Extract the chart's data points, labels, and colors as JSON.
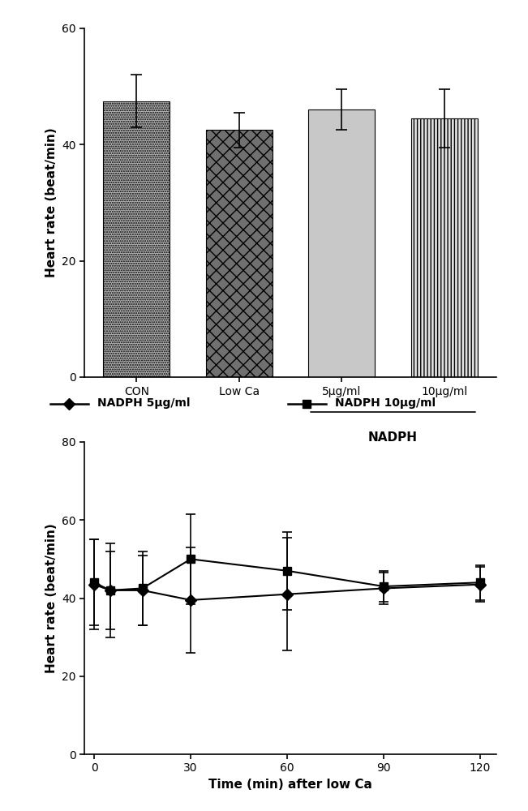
{
  "bar_values": [
    47.5,
    42.5,
    46.0,
    44.5
  ],
  "bar_errors": [
    4.5,
    3.0,
    3.5,
    5.0
  ],
  "bar_labels": [
    "CON",
    "Low Ca",
    "5μg/ml",
    "10μg/ml"
  ],
  "bar_ylabel": "Heart rate (beat/min)",
  "bar_ylim": [
    0,
    60
  ],
  "bar_yticks": [
    0,
    20,
    40,
    60
  ],
  "nadph_label": "NADPH",
  "line_time": [
    0,
    5,
    15,
    30,
    60,
    90,
    120
  ],
  "line_5ug_values": [
    43.5,
    42.0,
    42.0,
    39.5,
    41.0,
    42.5,
    43.5
  ],
  "line_5ug_errors": [
    11.5,
    12.0,
    9.0,
    13.5,
    14.5,
    4.0,
    4.5
  ],
  "line_10ug_values": [
    44.0,
    42.0,
    42.5,
    50.0,
    47.0,
    43.0,
    44.0
  ],
  "line_10ug_errors": [
    11.0,
    10.0,
    9.5,
    11.5,
    10.0,
    4.0,
    4.5
  ],
  "line_ylabel": "Heart rate (beat/min)",
  "line_xlabel": "Time (min) after low Ca",
  "line_ylim": [
    0,
    80
  ],
  "line_yticks": [
    0,
    20,
    40,
    60,
    80
  ],
  "line_xticks": [
    0,
    30,
    60,
    90,
    120
  ],
  "legend_5ug": "NADPH 5μg/ml",
  "legend_10ug": "NADPH 10μg/ml",
  "color_black": "#000000",
  "color_white": "#ffffff",
  "bg_color": "#ffffff"
}
